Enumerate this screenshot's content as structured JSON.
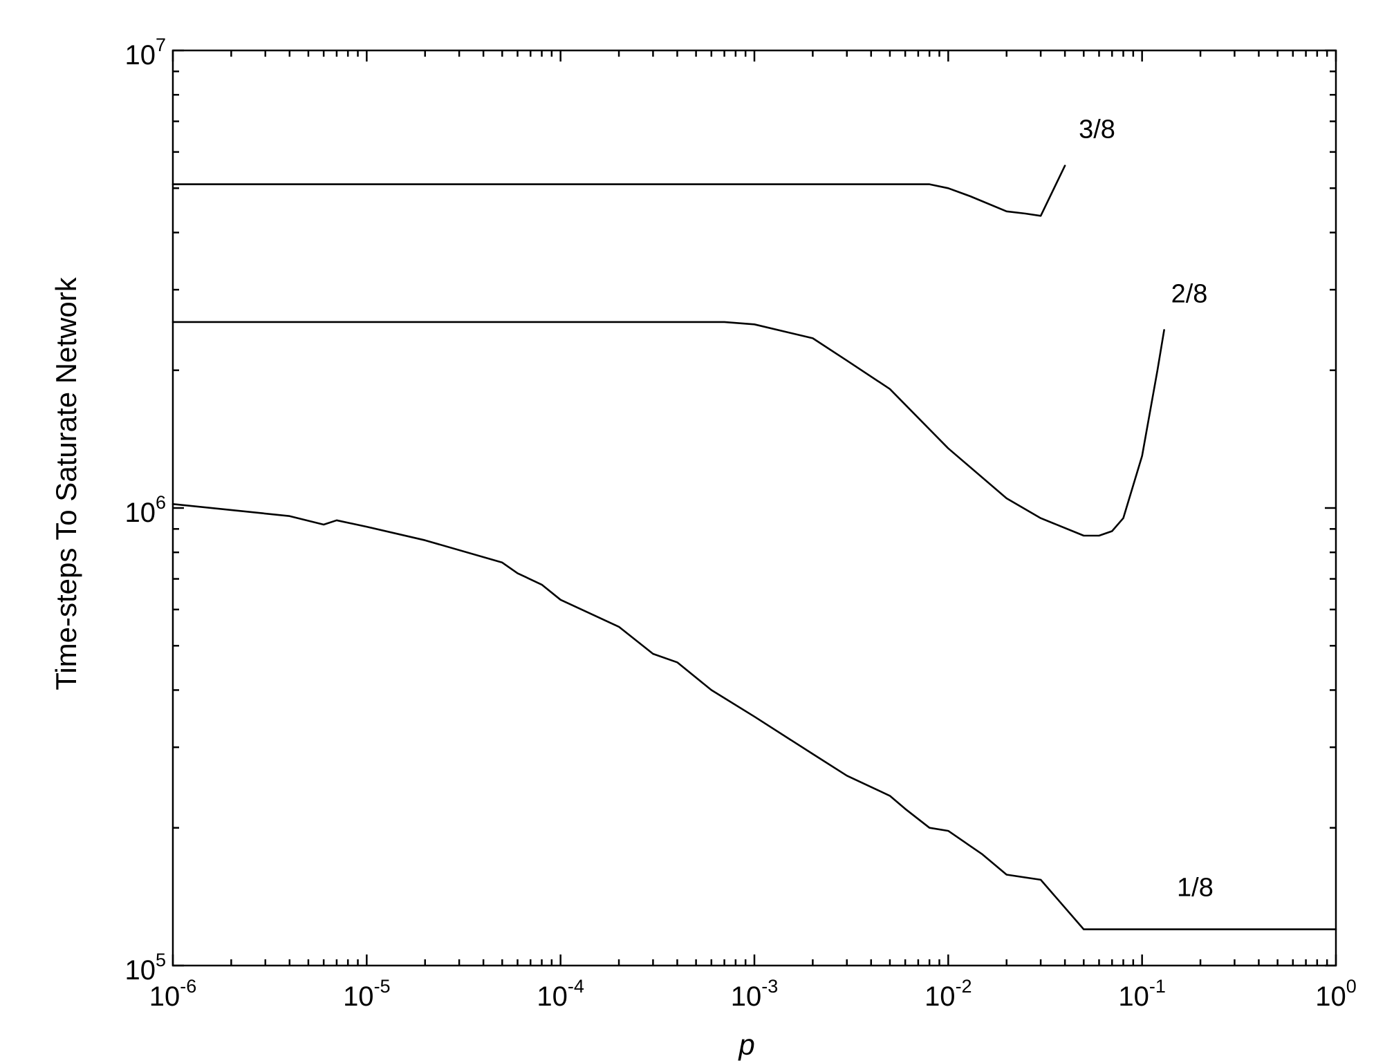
{
  "chart_data": {
    "type": "line",
    "title": "",
    "xlabel": "p",
    "ylabel": "Time-steps To Saturate Network",
    "xscale": "log",
    "yscale": "log",
    "xlim": [
      1e-06,
      1
    ],
    "ylim": [
      100000,
      10000000
    ],
    "grid": false,
    "legend": "none",
    "x_ticks": [
      {
        "base": "10",
        "exp": "-6"
      },
      {
        "base": "10",
        "exp": "-5"
      },
      {
        "base": "10",
        "exp": "-4"
      },
      {
        "base": "10",
        "exp": "-3"
      },
      {
        "base": "10",
        "exp": "-2"
      },
      {
        "base": "10",
        "exp": "-1"
      },
      {
        "base": "10",
        "exp": "0"
      }
    ],
    "y_ticks": [
      {
        "base": "10",
        "exp": "5"
      },
      {
        "base": "10",
        "exp": "6"
      },
      {
        "base": "10",
        "exp": "7"
      }
    ],
    "series": [
      {
        "name": "3/8",
        "x": [
          1e-06,
          0.0001,
          0.001,
          0.008,
          0.01,
          0.013,
          0.02,
          0.025,
          0.03,
          0.04
        ],
        "y": [
          5100000,
          5100000,
          5100000,
          5100000,
          5000000,
          4800000,
          4450000,
          4400000,
          4350000,
          5600000
        ]
      },
      {
        "name": "2/8",
        "x": [
          1e-06,
          0.0001,
          0.0007,
          0.001,
          0.002,
          0.003,
          0.005,
          0.01,
          0.02,
          0.03,
          0.05,
          0.06,
          0.07,
          0.08,
          0.1,
          0.12,
          0.13
        ],
        "y": [
          2550000,
          2550000,
          2550000,
          2520000,
          2350000,
          2100000,
          1820000,
          1350000,
          1050000,
          950000,
          870000,
          870000,
          890000,
          950000,
          1300000,
          2000000,
          2450000
        ]
      },
      {
        "name": "1/8",
        "x": [
          1e-06,
          2e-06,
          4e-06,
          6e-06,
          7e-06,
          1e-05,
          2e-05,
          5e-05,
          6e-05,
          8e-05,
          0.0001,
          0.0002,
          0.0003,
          0.0004,
          0.0006,
          0.001,
          0.002,
          0.003,
          0.005,
          0.006,
          0.008,
          0.01,
          0.015,
          0.02,
          0.03,
          0.05,
          1
        ],
        "y": [
          1020000,
          990000,
          960000,
          920000,
          940000,
          910000,
          850000,
          760000,
          720000,
          680000,
          630000,
          550000,
          480000,
          460000,
          400000,
          350000,
          290000,
          260000,
          235000,
          220000,
          200000,
          197000,
          175000,
          158000,
          154000,
          120000,
          120000
        ]
      }
    ]
  }
}
